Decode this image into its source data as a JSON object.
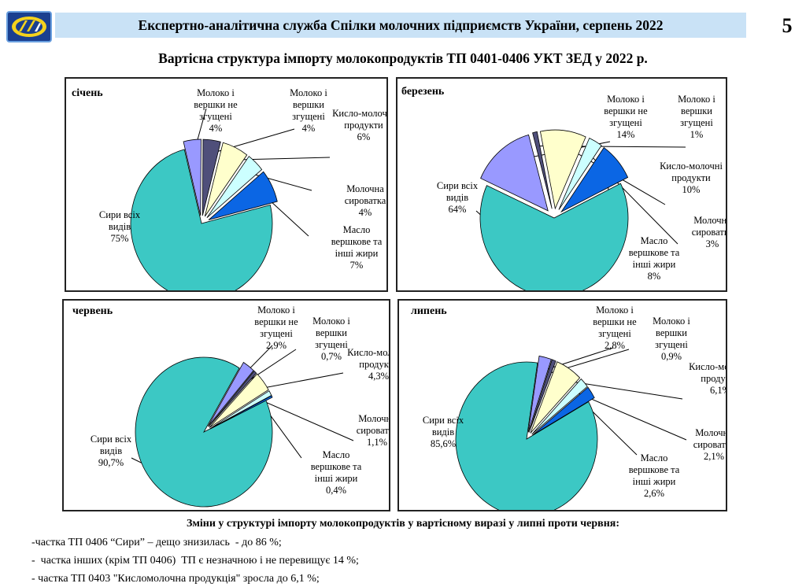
{
  "header": {
    "title": "Експертно-аналітична служба Спілки молочних підприємств України,  серпень 2022",
    "page_number": "5"
  },
  "main_title": "Вартісна структура імпорту молокопродуктів ТП 0401-0406 УКТ ЗЕД у 2022 р.",
  "colors": {
    "header_bar": "#c9e2f6",
    "cheese": "#3cc8c4",
    "milk_not_condensed": "#9999ff",
    "milk_condensed": "#4f4f7a",
    "sour_milk": "#ffffcc",
    "whey": "#ccffff",
    "butter": "#0b66e4"
  },
  "chart_data": [
    {
      "type": "pie",
      "title": "січень",
      "slices": [
        {
          "label": "Сири всіх видів",
          "value": 75,
          "value_text": "75%"
        },
        {
          "label": "Молоко і вершки не згущені",
          "value": 4,
          "value_text": "4%"
        },
        {
          "label": "Молоко і вершки згущені",
          "value": 4,
          "value_text": "4%"
        },
        {
          "label": "Кисло-молочні продукти",
          "value": 6,
          "value_text": "6%"
        },
        {
          "label": "Молочна сироватка",
          "value": 4,
          "value_text": "4%"
        },
        {
          "label": "Масло вершкове та інші жири",
          "value": 7,
          "value_text": "7%"
        }
      ]
    },
    {
      "type": "pie",
      "title": "березень",
      "slices": [
        {
          "label": "Сири всіх видів",
          "value": 64,
          "value_text": "64%"
        },
        {
          "label": "Молоко і вершки не згущені",
          "value": 14,
          "value_text": "14%"
        },
        {
          "label": "Молоко і вершки згущені",
          "value": 1,
          "value_text": "1%"
        },
        {
          "label": "Кисло-молочні продукти",
          "value": 10,
          "value_text": "10%"
        },
        {
          "label": "Молочна сироватка",
          "value": 3,
          "value_text": "3%"
        },
        {
          "label": "Масло вершкове та інші жири",
          "value": 8,
          "value_text": "8%"
        }
      ]
    },
    {
      "type": "pie",
      "title": "червень",
      "slices": [
        {
          "label": "Сири всіх видів",
          "value": 90.7,
          "value_text": "90,7%"
        },
        {
          "label": "Молоко і вершки не згущені",
          "value": 2.9,
          "value_text": "2,9%"
        },
        {
          "label": "Молоко і вершки згущені",
          "value": 0.7,
          "value_text": "0,7%"
        },
        {
          "label": "Кисло-молочні продукти",
          "value": 4.3,
          "value_text": "4,3%"
        },
        {
          "label": "Молочна сироватка",
          "value": 1.1,
          "value_text": "1,1%"
        },
        {
          "label": "Масло вершкове та інші жири",
          "value": 0.4,
          "value_text": "0,4%"
        }
      ]
    },
    {
      "type": "pie",
      "title": "липень",
      "slices": [
        {
          "label": "Сири всіх видів",
          "value": 85.6,
          "value_text": "85,6%"
        },
        {
          "label": "Молоко і вершки не згущені",
          "value": 2.8,
          "value_text": "2,8%"
        },
        {
          "label": "Молоко і вершки згущені",
          "value": 0.9,
          "value_text": "0,9%"
        },
        {
          "label": "Кисло-молочні продукти",
          "value": 6.1,
          "value_text": "6,1%"
        },
        {
          "label": "Молочна сироватка",
          "value": 2.1,
          "value_text": "2,1%"
        },
        {
          "label": "Масло вершкове та інші жири",
          "value": 2.6,
          "value_text": "2,6%"
        }
      ]
    }
  ],
  "footer": {
    "title": "Зміни у структурі імпорту молокопродуктів у вартісному виразі у липні проти червня:",
    "notes": [
      "-частка ТП 0406 “Сири” – дещо знизилась  - до 86 %;",
      "-  частка інших (крім ТП 0406)  ТП є незначною і не перевищує 14 %;",
      "- частка ТП 0403 \"Кисломолочна продукція\" зросла до 6,1 %;"
    ]
  }
}
